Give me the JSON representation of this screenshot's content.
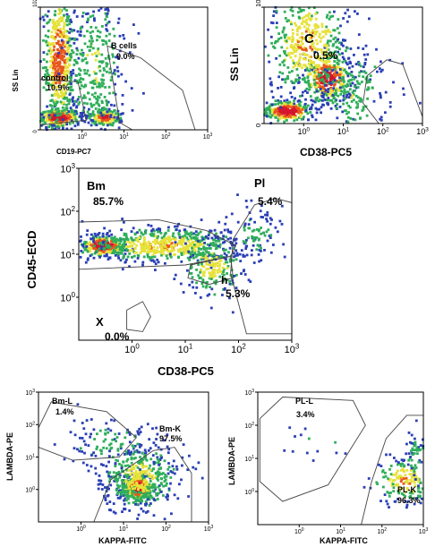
{
  "colors": {
    "background": "#ffffff",
    "axis": "#000000",
    "gate": "#444444",
    "density_low": "#2a3fb5",
    "density_mid": "#2fae5a",
    "density_high": "#e7e23a",
    "density_peak": "#e8561c",
    "density_max": "#d4162c"
  },
  "chart_data": [
    {
      "id": "p1",
      "type": "scatter",
      "subtype": "flow-cytometry-density",
      "xlabel": "CD19-PC7",
      "ylabel": "SS Lin",
      "x_scale": "log",
      "x_ticks": [
        {
          "v": 0,
          "label": "10",
          "exp": "0"
        },
        {
          "v": 1,
          "label": "10",
          "exp": "1"
        },
        {
          "v": 2,
          "label": "10",
          "exp": "2"
        },
        {
          "v": 3,
          "label": "10",
          "exp": "3"
        }
      ],
      "y_ticks": [
        {
          "v": 0,
          "label": "0"
        },
        {
          "v": 1023,
          "label": "1023"
        }
      ],
      "xlim": [
        -1,
        3
      ],
      "ylim": [
        0,
        1023
      ],
      "gates": [
        {
          "name": "control",
          "pct": "10.9%",
          "polygon": [
            [
              -1,
              420
            ],
            [
              -0.1,
              400
            ],
            [
              0.1,
              80
            ],
            [
              -1,
              40
            ]
          ]
        },
        {
          "name": "B cells",
          "pct": "9.0%",
          "polygon": [
            [
              0.6,
              700
            ],
            [
              1.4,
              600
            ],
            [
              2.4,
              330
            ],
            [
              2.7,
              0
            ],
            [
              1.2,
              0
            ],
            [
              0.9,
              60
            ]
          ]
        }
      ],
      "clusters": [
        {
          "cx": -0.55,
          "cy": 100,
          "sx": 0.25,
          "sy": 40,
          "n": 260,
          "peak": 1
        },
        {
          "cx": -0.55,
          "cy": 600,
          "sx": 0.2,
          "sy": 300,
          "n": 520,
          "peak": 0.7
        },
        {
          "cx": 0.55,
          "cy": 100,
          "sx": 0.2,
          "sy": 35,
          "n": 160,
          "peak": 0.8
        },
        {
          "cx": 0.3,
          "cy": 520,
          "sx": 0.35,
          "sy": 320,
          "n": 340,
          "peak": 0.35
        }
      ]
    },
    {
      "id": "p2",
      "type": "scatter",
      "subtype": "flow-cytometry-density",
      "xlabel": "CD38-PC5",
      "ylabel": "SS Lin",
      "x_scale": "log",
      "x_ticks": [
        {
          "v": 0,
          "label": "10",
          "exp": "0"
        },
        {
          "v": 1,
          "label": "10",
          "exp": "1"
        },
        {
          "v": 2,
          "label": "10",
          "exp": "2"
        },
        {
          "v": 3,
          "label": "10",
          "exp": "3"
        }
      ],
      "y_ticks": [
        {
          "v": 0,
          "label": "0"
        },
        {
          "v": 1023,
          "label": "1023"
        }
      ],
      "xlim": [
        -1,
        3
      ],
      "ylim": [
        0,
        1023
      ],
      "gates": [
        {
          "name": "C",
          "pct": "0.5%",
          "polygon": [
            [
              1.6,
              420
            ],
            [
              2.1,
              560
            ],
            [
              2.5,
              520
            ],
            [
              3,
              60
            ],
            [
              3,
              0
            ],
            [
              1.9,
              0
            ],
            [
              1.5,
              180
            ]
          ]
        }
      ],
      "clusters": [
        {
          "cx": -0.4,
          "cy": 110,
          "sx": 0.3,
          "sy": 45,
          "n": 300,
          "peak": 1
        },
        {
          "cx": 0.6,
          "cy": 400,
          "sx": 0.3,
          "sy": 110,
          "n": 330,
          "peak": 0.9
        },
        {
          "cx": 0.1,
          "cy": 700,
          "sx": 0.55,
          "sy": 260,
          "n": 480,
          "peak": 0.55
        },
        {
          "cx": 1.3,
          "cy": 250,
          "sx": 0.45,
          "sy": 200,
          "n": 180,
          "peak": 0.3
        }
      ]
    },
    {
      "id": "p3",
      "type": "scatter",
      "subtype": "flow-cytometry-density",
      "xlabel": "CD38-PC5",
      "ylabel": "CD45-ECD",
      "x_scale": "log",
      "y_scale": "log",
      "x_ticks": [
        {
          "v": 0,
          "label": "10",
          "exp": "0"
        },
        {
          "v": 1,
          "label": "10",
          "exp": "1"
        },
        {
          "v": 2,
          "label": "10",
          "exp": "2"
        },
        {
          "v": 3,
          "label": "10",
          "exp": "3"
        }
      ],
      "y_ticks": [
        {
          "v": 0,
          "label": "10",
          "exp": "0"
        },
        {
          "v": 1,
          "label": "10",
          "exp": "1"
        },
        {
          "v": 2,
          "label": "10",
          "exp": "2"
        },
        {
          "v": 3,
          "label": "10",
          "exp": "3"
        }
      ],
      "xlim": [
        -1,
        3
      ],
      "ylim": [
        -1,
        3
      ],
      "gates": [
        {
          "name": "Bm",
          "pct": "85.7%",
          "polygon": [
            [
              -1,
              1.75
            ],
            [
              0.5,
              1.8
            ],
            [
              1.4,
              1.55
            ],
            [
              1.95,
              1.2
            ],
            [
              1.85,
              0.95
            ],
            [
              1.0,
              0.75
            ],
            [
              -1,
              0.65
            ]
          ]
        },
        {
          "name": "Pl",
          "pct": "5.4%",
          "polygon": [
            [
              1.9,
              1.35
            ],
            [
              2.3,
              2.15
            ],
            [
              2.7,
              2.3
            ],
            [
              3,
              2.2
            ],
            [
              3,
              -0.85
            ],
            [
              2.15,
              -0.85
            ],
            [
              1.85,
              0.55
            ]
          ]
        },
        {
          "name": "h",
          "pct": "5.3%",
          "polygon": [
            [
              1.1,
              0.75
            ],
            [
              1.85,
              0.95
            ],
            [
              1.9,
              0.45
            ],
            [
              1.45,
              0.3
            ],
            [
              1.05,
              0.45
            ]
          ]
        },
        {
          "name": "X",
          "pct": "0.0%",
          "polygon": [
            [
              -0.1,
              -0.3
            ],
            [
              0.2,
              -0.1
            ],
            [
              0.35,
              -0.45
            ],
            [
              0.2,
              -0.8
            ],
            [
              -0.1,
              -0.75
            ]
          ]
        }
      ],
      "clusters": [
        {
          "cx": -0.55,
          "cy": 1.2,
          "sx": 0.22,
          "sy": 0.12,
          "n": 260,
          "peak": 1
        },
        {
          "cx": 0.6,
          "cy": 1.2,
          "sx": 0.7,
          "sy": 0.2,
          "n": 620,
          "peak": 0.55
        },
        {
          "cx": 1.5,
          "cy": 0.7,
          "sx": 0.3,
          "sy": 0.35,
          "n": 220,
          "peak": 0.45
        },
        {
          "cx": 2.3,
          "cy": 1.45,
          "sx": 0.25,
          "sy": 0.3,
          "n": 90,
          "peak": 0.25
        }
      ]
    },
    {
      "id": "p4",
      "type": "scatter",
      "subtype": "flow-cytometry-density",
      "xlabel": "KAPPA-FITC",
      "ylabel": "LAMBDA-PE",
      "x_scale": "log",
      "y_scale": "log",
      "x_ticks": [
        {
          "v": 0,
          "label": "10",
          "exp": "0"
        },
        {
          "v": 1,
          "label": "10",
          "exp": "1"
        },
        {
          "v": 2,
          "label": "10",
          "exp": "2"
        },
        {
          "v": 3,
          "label": "10",
          "exp": "3"
        }
      ],
      "y_ticks": [
        {
          "v": 0,
          "label": "10",
          "exp": "0"
        },
        {
          "v": 1,
          "label": "10",
          "exp": "1"
        },
        {
          "v": 2,
          "label": "10",
          "exp": "2"
        },
        {
          "v": 3,
          "label": "10",
          "exp": "3"
        }
      ],
      "xlim": [
        -1,
        3
      ],
      "ylim": [
        -1,
        3
      ],
      "gates": [
        {
          "name": "Bm-L",
          "pct": "1.4%",
          "polygon": [
            [
              -1,
              1.9
            ],
            [
              -0.7,
              2.7
            ],
            [
              0.6,
              2.4
            ],
            [
              1.3,
              1.6
            ],
            [
              0.9,
              1.0
            ],
            [
              -0.2,
              0.9
            ],
            [
              -1,
              1.3
            ]
          ]
        },
        {
          "name": "Bm-K",
          "pct": "97.5%",
          "polygon": [
            [
              0.3,
              -1
            ],
            [
              0.7,
              0.3
            ],
            [
              1.7,
              1.2
            ],
            [
              2.2,
              1.3
            ],
            [
              2.6,
              0.5
            ],
            [
              2.6,
              -1
            ]
          ]
        }
      ],
      "clusters": [
        {
          "cx": 1.35,
          "cy": 0.05,
          "sx": 0.18,
          "sy": 0.2,
          "n": 420,
          "peak": 1
        },
        {
          "cx": 1.4,
          "cy": 0.35,
          "sx": 0.45,
          "sy": 0.5,
          "n": 420,
          "peak": 0.45
        },
        {
          "cx": 0.8,
          "cy": 1.4,
          "sx": 0.6,
          "sy": 0.45,
          "n": 110,
          "peak": 0.2
        }
      ]
    },
    {
      "id": "p5",
      "type": "scatter",
      "subtype": "flow-cytometry-density",
      "xlabel": "KAPPA-FITC",
      "ylabel": "LAMBDA-PE",
      "x_scale": "log",
      "y_scale": "log",
      "x_ticks": [
        {
          "v": 0,
          "label": "10",
          "exp": "0"
        },
        {
          "v": 1,
          "label": "10",
          "exp": "1"
        },
        {
          "v": 2,
          "label": "10",
          "exp": "2"
        },
        {
          "v": 3,
          "label": "10",
          "exp": "3"
        }
      ],
      "y_ticks": [
        {
          "v": 0,
          "label": "10",
          "exp": "0"
        },
        {
          "v": 1,
          "label": "10",
          "exp": "1"
        },
        {
          "v": 2,
          "label": "10",
          "exp": "2"
        },
        {
          "v": 3,
          "label": "10",
          "exp": "3"
        }
      ],
      "xlim": [
        -1,
        3
      ],
      "ylim": [
        -1,
        3
      ],
      "gates": [
        {
          "name": "PL-L",
          "pct": "3.4%",
          "polygon": [
            [
              -0.95,
              2.2
            ],
            [
              -0.4,
              2.85
            ],
            [
              1.3,
              2.75
            ],
            [
              1.6,
              2.0
            ],
            [
              0.7,
              0.2
            ],
            [
              -0.4,
              -0.3
            ],
            [
              -0.95,
              0.3
            ]
          ]
        },
        {
          "name": "PL-K",
          "pct": "96.3%",
          "polygon": [
            [
              1.5,
              -1
            ],
            [
              1.75,
              0.3
            ],
            [
              2.1,
              1.6
            ],
            [
              2.6,
              2.3
            ],
            [
              3,
              2.3
            ],
            [
              3,
              -1
            ]
          ]
        }
      ],
      "clusters": [
        {
          "cx": 2.55,
          "cy": 0.35,
          "sx": 0.35,
          "sy": 0.35,
          "n": 180,
          "peak": 0.55
        },
        {
          "cx": 2.8,
          "cy": 1.1,
          "sx": 0.15,
          "sy": 0.35,
          "n": 50,
          "peak": 0.25
        },
        {
          "cx": 0.4,
          "cy": 1.5,
          "sx": 0.6,
          "sy": 0.35,
          "n": 14,
          "peak": 0.15
        }
      ]
    }
  ]
}
